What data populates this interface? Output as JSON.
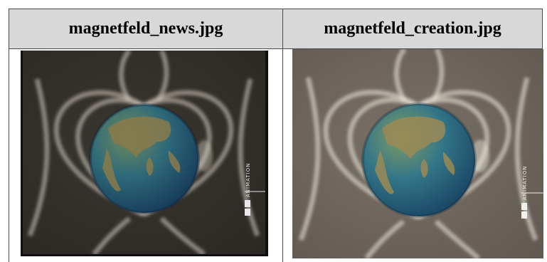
{
  "table": {
    "headers": [
      "magnetfeld_news.jpg",
      "magnetfeld_creation.jpg"
    ],
    "images": [
      {
        "icon": "earth-magnetic-field-image",
        "watermark": "ANIMATION"
      },
      {
        "icon": "earth-magnetic-field-image",
        "watermark": "ANIMATION"
      }
    ]
  },
  "colors": {
    "header_bg": "#d8d8d8",
    "border": "#4a4a4a",
    "news_bg": "#3a342c",
    "creation_bg": "#6e665c",
    "field_line": "#d9d5c8",
    "ocean": "#1f5f8a"
  }
}
